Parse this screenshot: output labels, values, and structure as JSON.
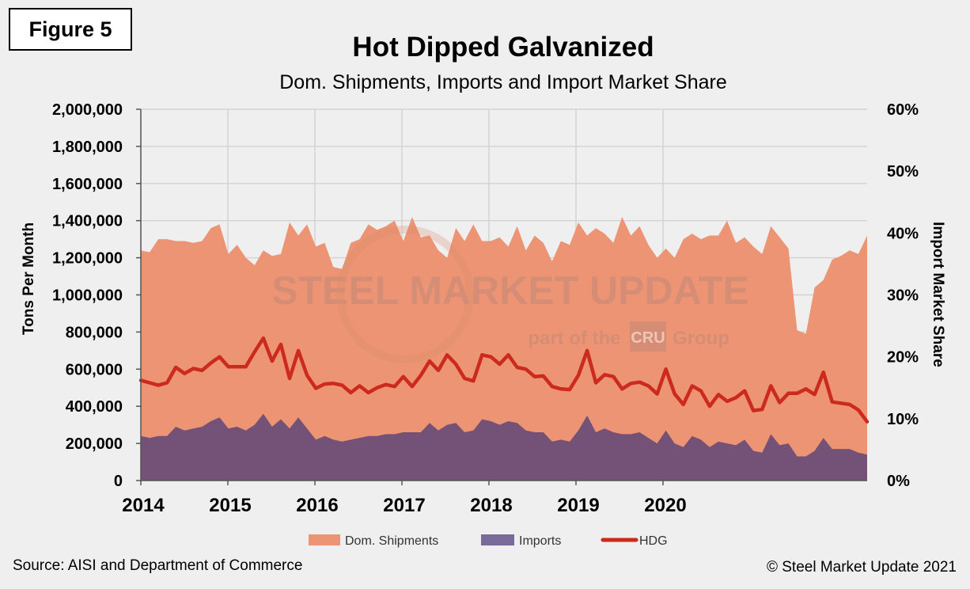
{
  "figure_label": "Figure 5",
  "source_note": "Source: AISI and Department of Commerce",
  "copyright": "© Steel Market Update 2021",
  "watermark": {
    "brand": "STEEL MARKET UPDATE",
    "tagline_pre": "part of the",
    "tagline_logo": "CRU",
    "tagline_post": "Group"
  },
  "colors": {
    "dom": "#ec9473",
    "imports": "#745277",
    "hdg": "#cc2a1c",
    "grid": "#d4d4d4",
    "background": "#efefef"
  },
  "chart_data": {
    "type": "area",
    "title": "Hot Dipped Galvanized",
    "subtitle": "Dom. Shipments, Imports and Import Market Share",
    "ylabel": "Tons Per Month",
    "y2label": "Import Market Share",
    "ylim": [
      0,
      2000000
    ],
    "y2lim": [
      0,
      60
    ],
    "yticks": [
      "0",
      "200,000",
      "400,000",
      "600,000",
      "800,000",
      "1,000,000",
      "1,200,000",
      "1,400,000",
      "1,600,000",
      "1,800,000",
      "2,000,000"
    ],
    "y2ticks": [
      "0%",
      "10%",
      "20%",
      "30%",
      "40%",
      "50%",
      "60%"
    ],
    "xticks": [
      "2014",
      "2015",
      "2016",
      "2017",
      "2018",
      "2019",
      "2020"
    ],
    "grid": true,
    "legend_position": "bottom",
    "series": [
      {
        "name": "Dom. Shipments",
        "kind": "area",
        "axis": "left",
        "values": [
          1240000,
          1230000,
          1300000,
          1300000,
          1290000,
          1290000,
          1280000,
          1290000,
          1360000,
          1380000,
          1220000,
          1270000,
          1200000,
          1160000,
          1240000,
          1210000,
          1220000,
          1390000,
          1320000,
          1380000,
          1260000,
          1280000,
          1150000,
          1140000,
          1280000,
          1300000,
          1380000,
          1350000,
          1370000,
          1400000,
          1290000,
          1420000,
          1310000,
          1320000,
          1240000,
          1200000,
          1360000,
          1290000,
          1380000,
          1290000,
          1290000,
          1310000,
          1260000,
          1370000,
          1240000,
          1320000,
          1280000,
          1180000,
          1290000,
          1270000,
          1390000,
          1320000,
          1360000,
          1330000,
          1280000,
          1420000,
          1320000,
          1370000,
          1270000,
          1200000,
          1250000,
          1200000,
          1300000,
          1330000,
          1300000,
          1320000,
          1320000,
          1400000,
          1280000,
          1310000,
          1260000,
          1220000,
          1370000,
          1310000,
          1250000,
          810000,
          790000,
          1040000,
          1080000,
          1190000,
          1210000,
          1240000,
          1220000,
          1320000
        ]
      },
      {
        "name": "Imports",
        "kind": "area",
        "axis": "left",
        "values": [
          240000,
          230000,
          240000,
          240000,
          290000,
          270000,
          280000,
          290000,
          320000,
          340000,
          280000,
          290000,
          270000,
          300000,
          360000,
          290000,
          330000,
          280000,
          340000,
          280000,
          220000,
          240000,
          220000,
          210000,
          220000,
          230000,
          240000,
          240000,
          250000,
          250000,
          260000,
          260000,
          260000,
          310000,
          270000,
          300000,
          310000,
          260000,
          270000,
          330000,
          320000,
          300000,
          320000,
          310000,
          270000,
          260000,
          260000,
          210000,
          220000,
          210000,
          270000,
          350000,
          260000,
          280000,
          260000,
          250000,
          250000,
          260000,
          230000,
          200000,
          270000,
          200000,
          180000,
          240000,
          220000,
          180000,
          210000,
          200000,
          190000,
          220000,
          160000,
          150000,
          250000,
          190000,
          200000,
          130000,
          130000,
          160000,
          230000,
          170000,
          170000,
          170000,
          150000,
          140000
        ]
      },
      {
        "name": "HDG",
        "kind": "line",
        "axis": "right",
        "values": [
          16.2,
          15.8,
          15.4,
          15.8,
          18.3,
          17.3,
          18.1,
          17.8,
          19.0,
          20.0,
          18.4,
          18.4,
          18.4,
          20.8,
          23.0,
          19.3,
          22.0,
          16.5,
          21.0,
          17.0,
          14.9,
          15.6,
          15.7,
          15.4,
          14.2,
          15.3,
          14.2,
          15.0,
          15.5,
          15.2,
          16.8,
          15.2,
          17.0,
          19.3,
          17.8,
          20.3,
          18.8,
          16.5,
          16.1,
          20.3,
          20.0,
          18.8,
          20.3,
          18.3,
          18.0,
          16.8,
          16.9,
          15.2,
          14.8,
          14.7,
          17.0,
          21.0,
          15.8,
          17.1,
          16.8,
          14.8,
          15.7,
          15.9,
          15.3,
          14.0,
          18.0,
          14.0,
          12.3,
          15.3,
          14.5,
          12.0,
          13.9,
          12.8,
          13.4,
          14.5,
          11.3,
          11.5,
          15.3,
          12.6,
          14.1,
          14.1,
          14.8,
          13.9,
          17.5,
          12.7,
          12.5,
          12.3,
          11.4,
          9.5
        ]
      }
    ]
  }
}
